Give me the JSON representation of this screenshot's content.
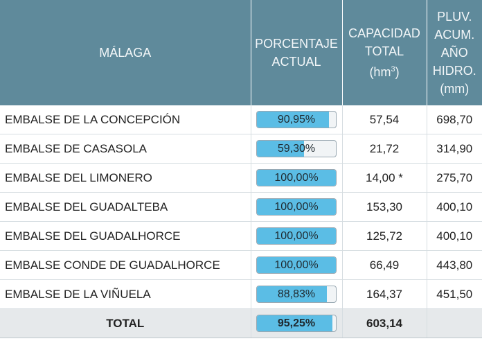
{
  "header": {
    "col1": "MÁLAGA",
    "col2_line1": "PORCENTAJE",
    "col2_line2": "ACTUAL",
    "col3_line1": "CAPACIDAD",
    "col3_line2": "TOTAL",
    "col3_unit_prefix": "(hm",
    "col3_unit_sup": "3",
    "col3_unit_suffix": ")",
    "col4_line1": "PLUV.",
    "col4_line2": "ACUM.",
    "col4_line3": "AÑO",
    "col4_line4": "HIDRO.",
    "col4_line5": "(mm)"
  },
  "rows": [
    {
      "name": "EMBALSE DE LA CONCEPCIÓN",
      "percent_label": "90,95%",
      "percent": 90.95,
      "capacity": "57,54",
      "rain": "698,70"
    },
    {
      "name": "EMBALSE DE CASASOLA",
      "percent_label": "59,30%",
      "percent": 59.3,
      "capacity": "21,72",
      "rain": "314,90"
    },
    {
      "name": "EMBALSE DEL LIMONERO",
      "percent_label": "100,00%",
      "percent": 100,
      "capacity": "14,00 *",
      "rain": "275,70"
    },
    {
      "name": "EMBALSE DEL GUADALTEBA",
      "percent_label": "100,00%",
      "percent": 100,
      "capacity": "153,30",
      "rain": "400,10"
    },
    {
      "name": "EMBALSE DEL GUADALHORCE",
      "percent_label": "100,00%",
      "percent": 100,
      "capacity": "125,72",
      "rain": "400,10"
    },
    {
      "name": "EMBALSE CONDE DE GUADALHORCE",
      "percent_label": "100,00%",
      "percent": 100,
      "capacity": "66,49",
      "rain": "443,80"
    },
    {
      "name": "EMBALSE DE LA VIÑUELA",
      "percent_label": "88,83%",
      "percent": 88.83,
      "capacity": "164,37",
      "rain": "451,50"
    }
  ],
  "total": {
    "name": "TOTAL",
    "percent_label": "95,25%",
    "percent": 95.25,
    "capacity": "603,14",
    "rain": ""
  },
  "colors": {
    "header_bg": "#5f8a9b",
    "bar_fill": "#5bbde5",
    "total_bg": "#e6e9eb"
  }
}
